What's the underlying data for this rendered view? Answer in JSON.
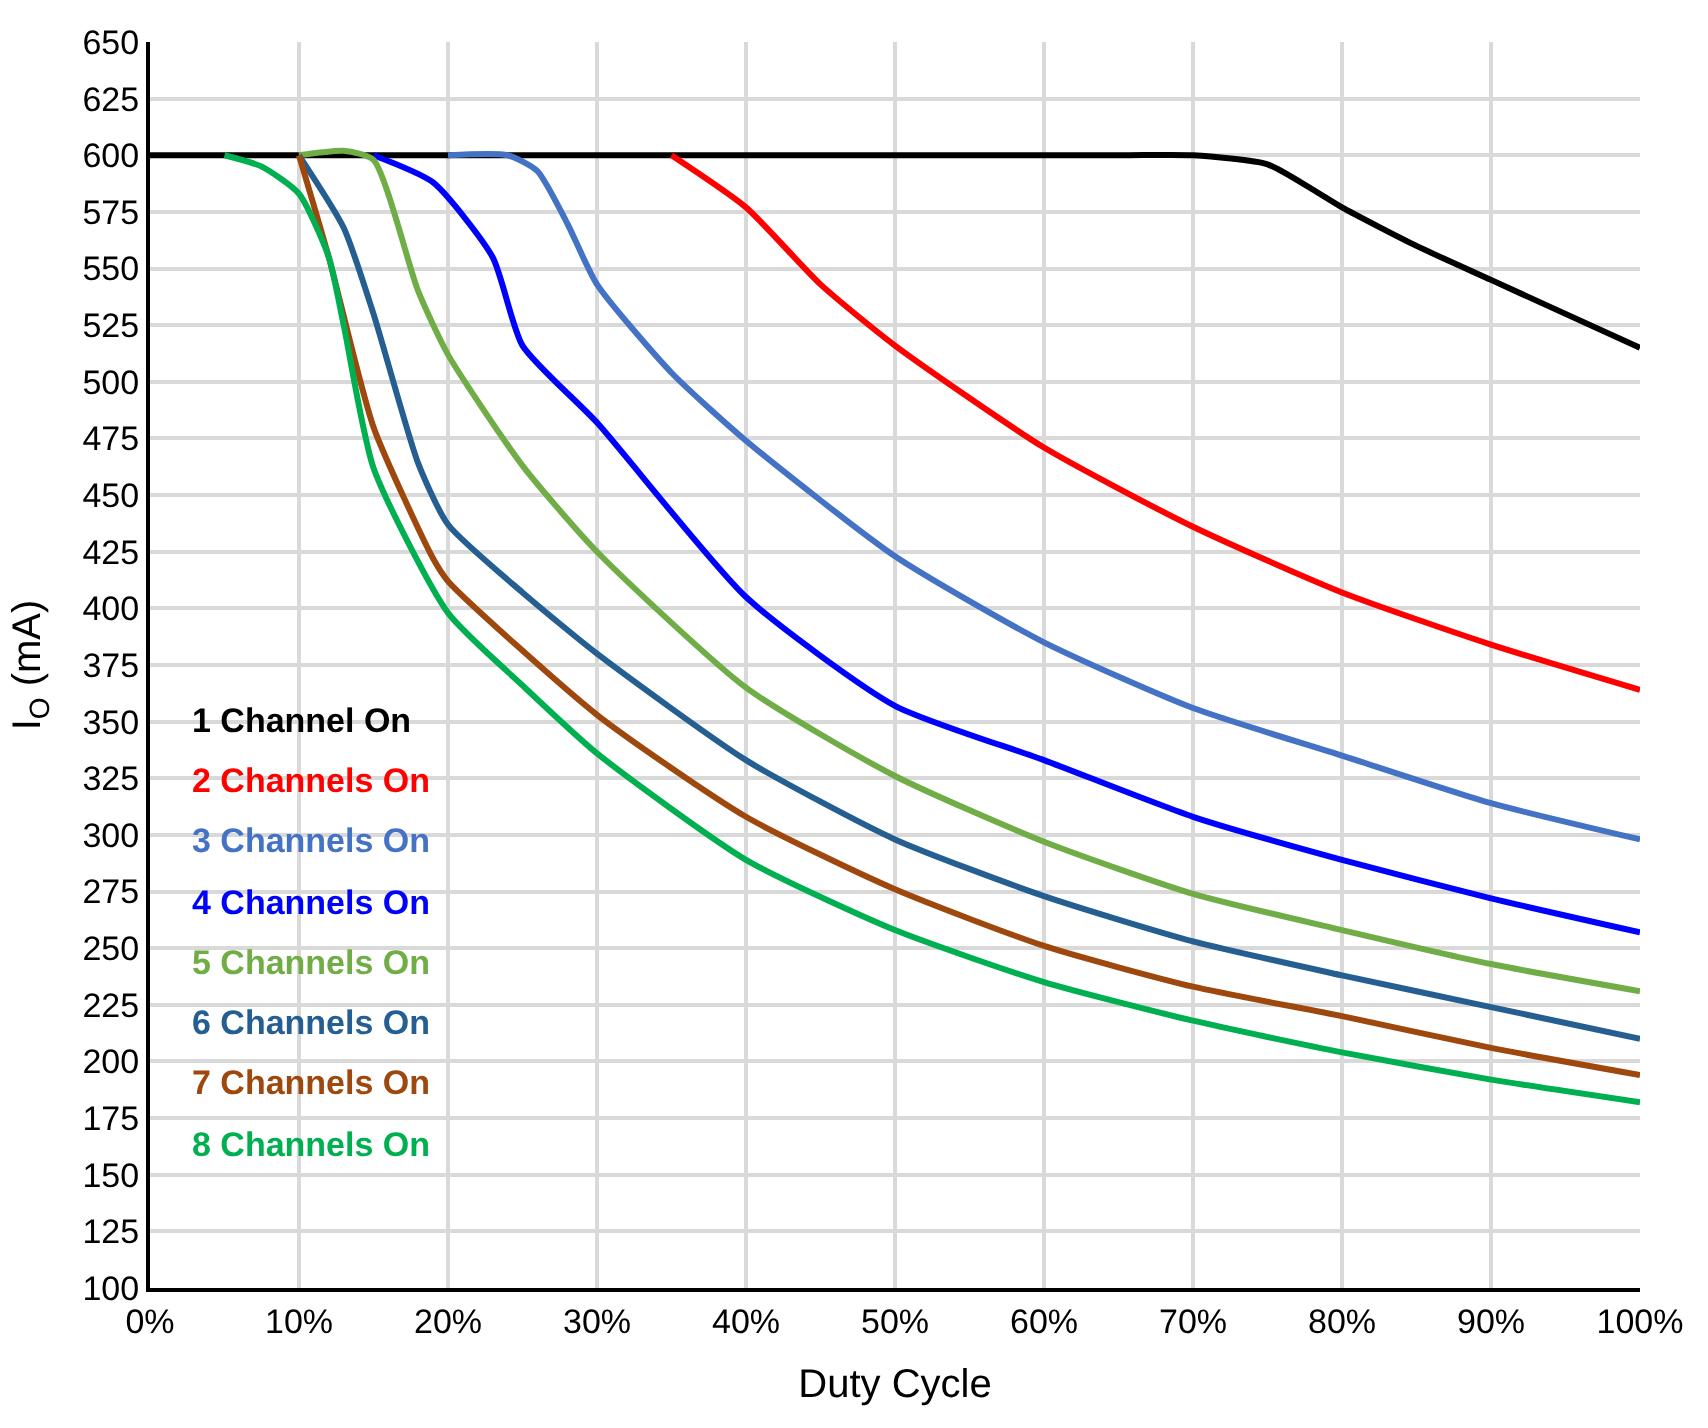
{
  "chart_data": {
    "type": "line",
    "xlabel": "Duty Cycle",
    "ylabel": "I$_{O}$ (mA)",
    "xlim": [
      0,
      100
    ],
    "xticks": [
      {
        "value": 0,
        "label": "0%"
      },
      {
        "value": 10,
        "label": "10%"
      },
      {
        "value": 20,
        "label": "20%"
      },
      {
        "value": 30,
        "label": "30%"
      },
      {
        "value": 40,
        "label": "40%"
      },
      {
        "value": 50,
        "label": "50%"
      },
      {
        "value": 60,
        "label": "60%"
      },
      {
        "value": 70,
        "label": "70%"
      },
      {
        "value": 80,
        "label": "80%"
      },
      {
        "value": 90,
        "label": "90%"
      },
      {
        "value": 100,
        "label": "100%"
      }
    ],
    "ylim": [
      100,
      650
    ],
    "yticks": [
      100,
      125,
      150,
      175,
      200,
      225,
      250,
      275,
      300,
      325,
      350,
      375,
      400,
      425,
      450,
      475,
      500,
      525,
      550,
      575,
      600,
      625,
      650
    ],
    "grid": true,
    "legend": false,
    "marker": "none",
    "line_style": "solid",
    "series": [
      {
        "name": "1 Channel On",
        "color": "#000000",
        "x": [
          0,
          65,
          70,
          75,
          78,
          80,
          85,
          90,
          95,
          100
        ],
        "values": [
          600,
          600,
          600,
          596,
          585,
          577,
          560,
          545,
          530,
          515
        ]
      },
      {
        "name": "2 Channels On",
        "color": "#ff0000",
        "x": [
          35,
          40,
          45,
          50,
          60,
          70,
          80,
          90,
          100
        ],
        "values": [
          600,
          577,
          543,
          516,
          471,
          436,
          407,
          384,
          364
        ]
      },
      {
        "name": "3 Channels On",
        "color": "#4472c4",
        "x": [
          20,
          24,
          26,
          28,
          30,
          35,
          40,
          50,
          60,
          70,
          80,
          90,
          100
        ],
        "values": [
          600,
          600,
          593,
          570,
          543,
          504,
          474,
          423,
          385,
          356,
          335,
          314,
          298
        ]
      },
      {
        "name": "4 Channels On",
        "color": "#0000ff",
        "x": [
          15,
          19,
          23,
          25,
          30,
          40,
          50,
          60,
          70,
          80,
          90,
          100
        ],
        "values": [
          600,
          588,
          555,
          516,
          482,
          405,
          357,
          333,
          308,
          289,
          272,
          257
        ]
      },
      {
        "name": "5 Channels On",
        "color": "#70ad47",
        "x": [
          10,
          13,
          15,
          18,
          20,
          25,
          30,
          40,
          50,
          60,
          70,
          80,
          90,
          100
        ],
        "values": [
          600,
          602,
          598,
          540,
          512,
          463,
          425,
          365,
          326,
          297,
          274,
          258,
          243,
          231
        ]
      },
      {
        "name": "6 Channels On",
        "color": "#255e91",
        "x": [
          10,
          13,
          15,
          18,
          20,
          25,
          30,
          40,
          50,
          60,
          70,
          80,
          90,
          100
        ],
        "values": [
          600,
          568,
          530,
          464,
          437,
          407,
          380,
          333,
          298,
          273,
          253,
          238,
          224,
          210
        ]
      },
      {
        "name": "7 Channels On",
        "color": "#9e480e",
        "x": [
          10,
          12,
          15,
          19,
          20,
          30,
          40,
          50,
          60,
          70,
          80,
          90,
          100
        ],
        "values": [
          600,
          555,
          480,
          422,
          412,
          353,
          308,
          276,
          251,
          233,
          220,
          206,
          194
        ]
      },
      {
        "name": "8 Channels On",
        "color": "#00b050",
        "x": [
          5,
          7.5,
          10,
          12,
          13,
          15,
          20,
          25,
          30,
          40,
          50,
          60,
          70,
          80,
          90,
          100
        ],
        "values": [
          600,
          595,
          583,
          555,
          525,
          462,
          398,
          366,
          336,
          289,
          258,
          235,
          218,
          204,
          192,
          182
        ]
      }
    ]
  }
}
